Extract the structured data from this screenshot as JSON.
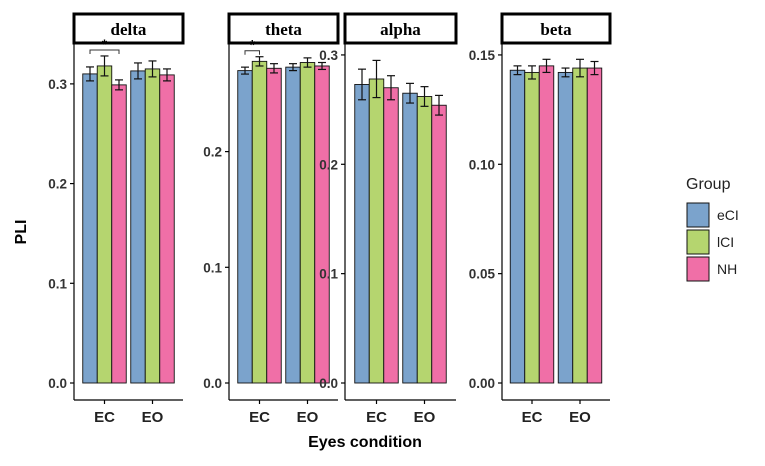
{
  "chart_data": {
    "type": "bar",
    "xlabel": "Eyes condition",
    "ylabel": "PLI",
    "legend": {
      "title": "Group",
      "position": "right",
      "items": [
        {
          "name": "eCI",
          "color": "#7BA3CC"
        },
        {
          "name": "lCI",
          "color": "#B5D56F"
        },
        {
          "name": "NH",
          "color": "#F06FA7"
        }
      ]
    },
    "categories": [
      "EC",
      "EO"
    ],
    "panels": [
      {
        "title": "delta",
        "ylim": [
          0,
          0.34
        ],
        "yticks": [
          0.0,
          0.1,
          0.2,
          0.3
        ],
        "ytick_labels": [
          "0.0",
          "0.1",
          "0.2",
          "0.3"
        ],
        "series": [
          {
            "name": "eCI",
            "values": [
              0.31,
              0.313
            ],
            "errors": [
              0.007,
              0.008
            ]
          },
          {
            "name": "lCI",
            "values": [
              0.318,
              0.315
            ],
            "errors": [
              0.01,
              0.008
            ]
          },
          {
            "name": "NH",
            "values": [
              0.299,
              0.309
            ],
            "errors": [
              0.005,
              0.006
            ]
          }
        ],
        "significance": [
          {
            "category": "EC",
            "from": "eCI",
            "to": "NH",
            "label": "*"
          }
        ]
      },
      {
        "title": "theta",
        "ylim": [
          0,
          0.293
        ],
        "yticks": [
          0.0,
          0.1,
          0.2
        ],
        "ytick_labels": [
          "0.0",
          "0.1",
          "0.2"
        ],
        "series": [
          {
            "name": "eCI",
            "values": [
              0.27,
              0.273
            ],
            "errors": [
              0.003,
              0.003
            ]
          },
          {
            "name": "lCI",
            "values": [
              0.278,
              0.277
            ],
            "errors": [
              0.004,
              0.004
            ]
          },
          {
            "name": "NH",
            "values": [
              0.272,
              0.274
            ],
            "errors": [
              0.004,
              0.003
            ]
          }
        ],
        "significance": [
          {
            "category": "EC",
            "from": "eCI",
            "to": "lCI",
            "label": "*"
          }
        ]
      },
      {
        "title": "alpha",
        "ylim": [
          0,
          0.31
        ],
        "yticks": [
          0.0,
          0.1,
          0.2,
          0.3
        ],
        "ytick_labels": [
          "0.0",
          "0.1",
          "0.2",
          "0.3"
        ],
        "series": [
          {
            "name": "eCI",
            "values": [
              0.273,
              0.265
            ],
            "errors": [
              0.014,
              0.009
            ]
          },
          {
            "name": "lCI",
            "values": [
              0.278,
              0.262
            ],
            "errors": [
              0.017,
              0.009
            ]
          },
          {
            "name": "NH",
            "values": [
              0.27,
              0.254
            ],
            "errors": [
              0.011,
              0.009
            ]
          }
        ],
        "significance": []
      },
      {
        "title": "beta",
        "ylim": [
          0,
          0.155
        ],
        "yticks": [
          0.0,
          0.05,
          0.1,
          0.15
        ],
        "ytick_labels": [
          "0.00",
          "0.05",
          "0.10",
          "0.15"
        ],
        "series": [
          {
            "name": "eCI",
            "values": [
              0.143,
              0.142
            ],
            "errors": [
              0.002,
              0.002
            ]
          },
          {
            "name": "lCI",
            "values": [
              0.142,
              0.144
            ],
            "errors": [
              0.003,
              0.004
            ]
          },
          {
            "name": "NH",
            "values": [
              0.145,
              0.144
            ],
            "errors": [
              0.003,
              0.003
            ]
          }
        ],
        "significance": []
      }
    ]
  }
}
